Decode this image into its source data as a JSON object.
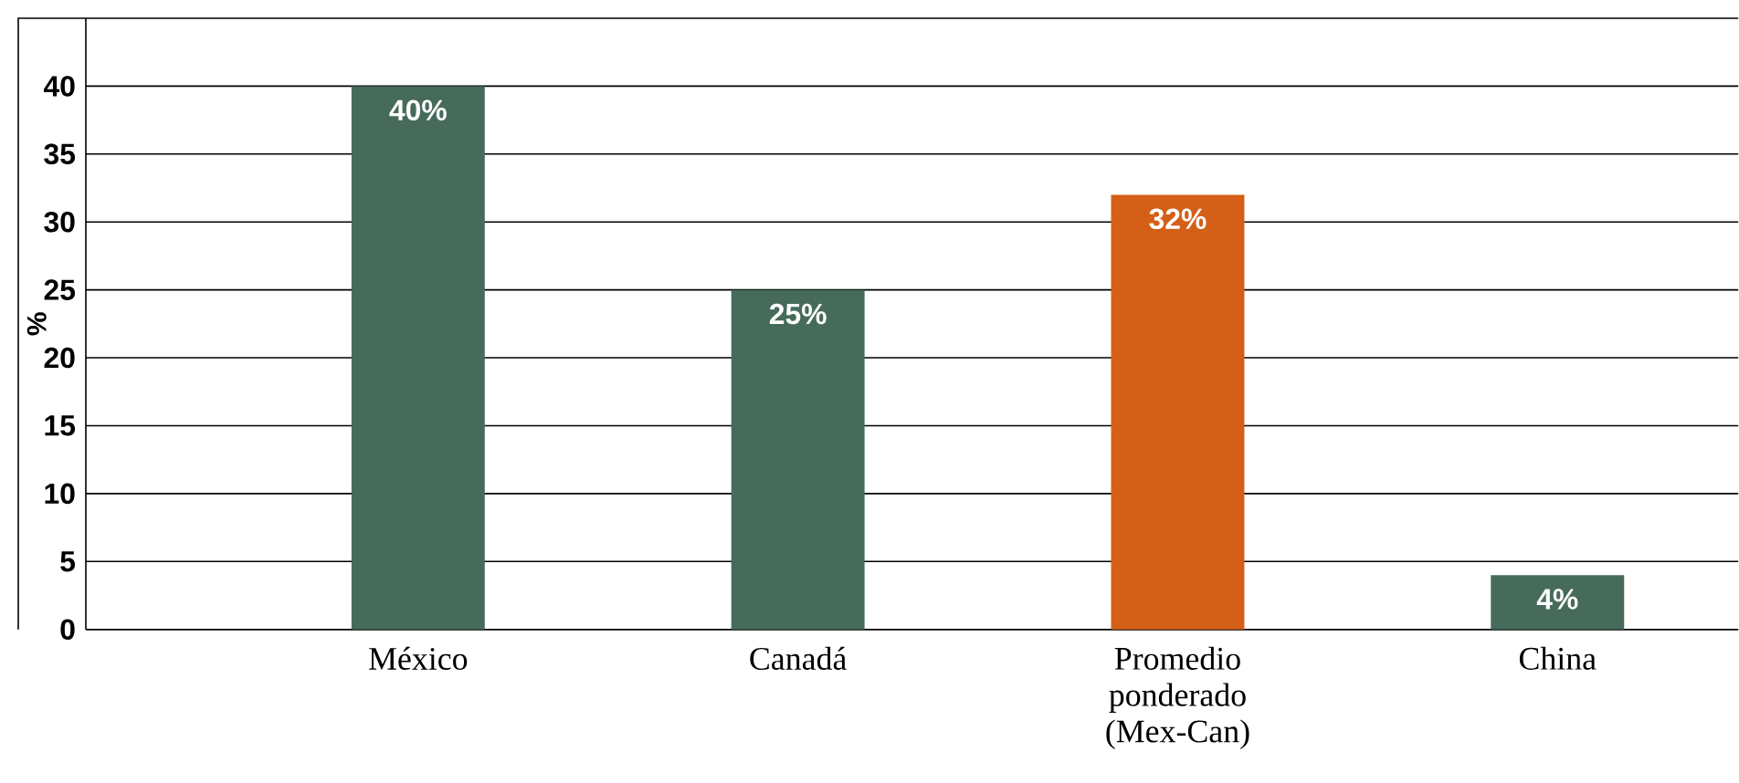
{
  "chart_data": {
    "type": "bar",
    "ylabel": "%",
    "categories": [
      "México",
      "Canadá",
      "Promedio ponderado (Mex-Can)",
      "China"
    ],
    "values": [
      40,
      25,
      32,
      4
    ],
    "colors": [
      "#466b5b",
      "#466b5b",
      "#d45f16",
      "#466b5b"
    ],
    "value_labels": [
      "40%",
      "25%",
      "32%",
      "4%"
    ],
    "ylim": [
      0,
      45
    ],
    "yticks": [
      0,
      5,
      10,
      15,
      20,
      25,
      30,
      35,
      40,
      {
        "value": 45,
        "label": null
      }
    ],
    "grid": "y"
  }
}
